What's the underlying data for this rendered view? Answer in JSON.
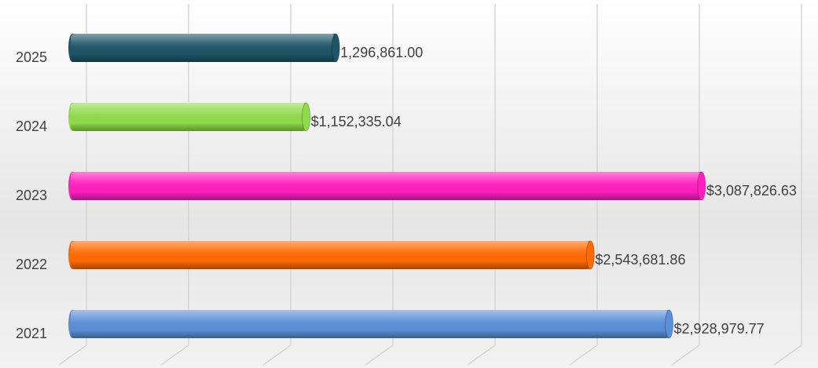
{
  "chart_data": {
    "type": "bar",
    "orientation": "horizontal",
    "categories": [
      "2021",
      "2022",
      "2023",
      "2024",
      "2025"
    ],
    "values": [
      2928979.77,
      2543681.86,
      3087826.63,
      1152335.04,
      1296861.0
    ],
    "value_labels": [
      "$2,928,979.77",
      "$2,543,681.86",
      "$3,087,826.63",
      "$1,152,335.04",
      "1,296,861.00"
    ],
    "colors": [
      "#5b8fd6",
      "#ff6a00",
      "#ff1fbf",
      "#8fdc4a",
      "#1d5566"
    ],
    "xlim": [
      0,
      3500000
    ],
    "xticks": [
      0,
      500000,
      1000000,
      1500000,
      2000000,
      2500000,
      3000000,
      3500000
    ],
    "grid": true
  }
}
